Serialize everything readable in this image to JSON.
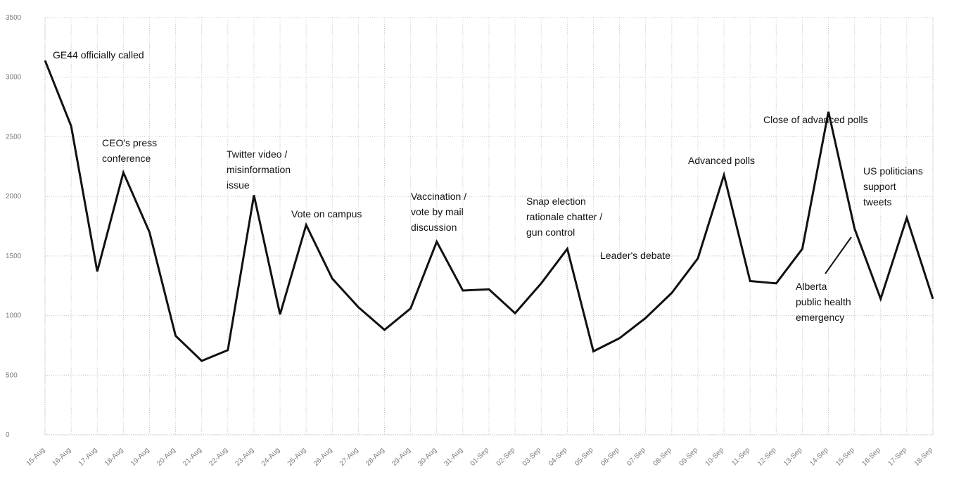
{
  "chart_data": {
    "type": "line",
    "title": "",
    "xlabel": "",
    "ylabel": "",
    "ylim": [
      0,
      3500
    ],
    "yticks": [
      0,
      500,
      1000,
      1500,
      2000,
      2500,
      3000,
      3500
    ],
    "grid": {
      "vertical": true,
      "horizontal": true,
      "style": "dotted"
    },
    "line_color": "#111111",
    "categories": [
      "15-Aug",
      "16-Aug",
      "17-Aug",
      "18-Aug",
      "19-Aug",
      "20-Aug",
      "21-Aug",
      "22-Aug",
      "23-Aug",
      "24-Aug",
      "25-Aug",
      "26-Aug",
      "27-Aug",
      "28-Aug",
      "29-Aug",
      "30-Aug",
      "31-Aug",
      "01-Sep",
      "02-Sep",
      "03-Sep",
      "04-Sep",
      "05-Sep",
      "06-Sep",
      "07-Sep",
      "08-Sep",
      "09-Sep",
      "10-Sep",
      "11-Sep",
      "12-Sep",
      "13-Sep",
      "14-Sep",
      "15-Sep",
      "16-Sep",
      "17-Sep",
      "18-Sep"
    ],
    "series": [
      {
        "values": [
          3140,
          2590,
          1370,
          2200,
          1700,
          830,
          620,
          710,
          2010,
          1010,
          1760,
          1310,
          1070,
          880,
          1060,
          1620,
          1210,
          1220,
          1020,
          1270,
          1560,
          700,
          810,
          980,
          1190,
          1480,
          2180,
          1290,
          1270,
          1560,
          2710,
          1730,
          1140,
          1820,
          1140
        ]
      }
    ],
    "annotations": [
      {
        "lines": [
          "GE44 officially called"
        ]
      },
      {
        "lines": [
          "CEO's press",
          "conference"
        ]
      },
      {
        "lines": [
          "Twitter video /",
          "misinformation",
          "issue"
        ]
      },
      {
        "lines": [
          "Vote on campus"
        ]
      },
      {
        "lines": [
          "Vaccination /",
          "vote by mail",
          "discussion"
        ]
      },
      {
        "lines": [
          "Snap election",
          "rationale chatter /",
          "gun control"
        ]
      },
      {
        "lines": [
          "Leader's debate"
        ]
      },
      {
        "lines": [
          "Advanced polls"
        ]
      },
      {
        "lines": [
          "Close of advanced polls"
        ]
      },
      {
        "lines": [
          "US politicians",
          "support",
          "tweets"
        ]
      },
      {
        "lines": [
          "Alberta",
          "public health",
          "emergency"
        ]
      }
    ]
  }
}
